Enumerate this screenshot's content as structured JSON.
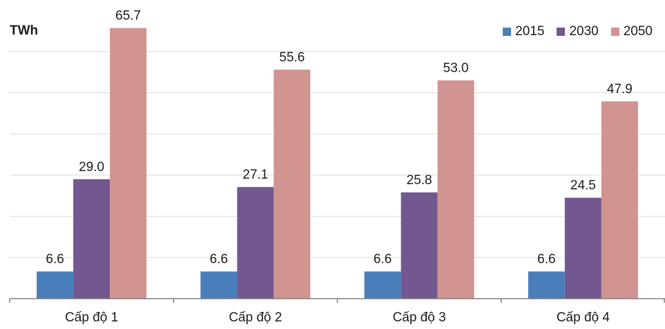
{
  "chart_data": {
    "type": "bar",
    "unit_label": "TWh",
    "categories": [
      "Cấp độ 1",
      "Cấp độ 2",
      "Cấp độ 3",
      "Cấp độ 4"
    ],
    "series": [
      {
        "name": "2015",
        "color": "#4A7EBB",
        "values": [
          6.6,
          6.6,
          6.6,
          6.6
        ],
        "labels": [
          "6.6",
          "6.6",
          "6.6",
          "6.6"
        ]
      },
      {
        "name": "2030",
        "color": "#735791",
        "values": [
          29.0,
          27.1,
          25.8,
          24.5
        ],
        "labels": [
          "29.0",
          "27.1",
          "25.8",
          "24.5"
        ]
      },
      {
        "name": "2050",
        "color": "#D19491",
        "values": [
          65.7,
          55.6,
          53.0,
          47.9
        ],
        "labels": [
          "65.7",
          "55.6",
          "53.0",
          "47.9"
        ]
      }
    ],
    "ylim": [
      0,
      70
    ],
    "grid": true,
    "legend_position": "top-right"
  }
}
